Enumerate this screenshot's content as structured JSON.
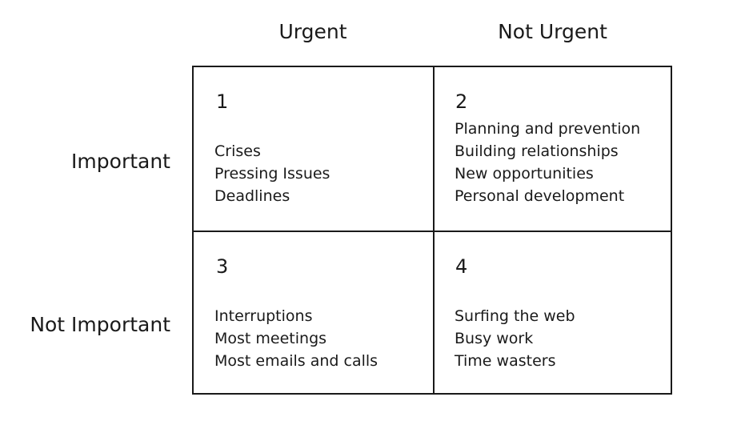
{
  "columns": [
    "Urgent",
    "Not Urgent"
  ],
  "rows": [
    "Important",
    "Not Important"
  ],
  "quadrants": [
    {
      "number": "1",
      "items": [
        "Crises",
        "Pressing Issues",
        "Deadlines"
      ]
    },
    {
      "number": "2",
      "items": [
        "Planning and prevention",
        "Building relationships",
        "New opportunities",
        "Personal development"
      ]
    },
    {
      "number": "3",
      "items": [
        "Interruptions",
        "Most meetings",
        "Most emails and calls"
      ]
    },
    {
      "number": "4",
      "items": [
        "Surfing the web",
        "Busy work",
        "Time wasters"
      ]
    }
  ],
  "colors": {
    "text": "#1a1a1a",
    "line": "#1a1a1a",
    "background": "#ffffff"
  }
}
